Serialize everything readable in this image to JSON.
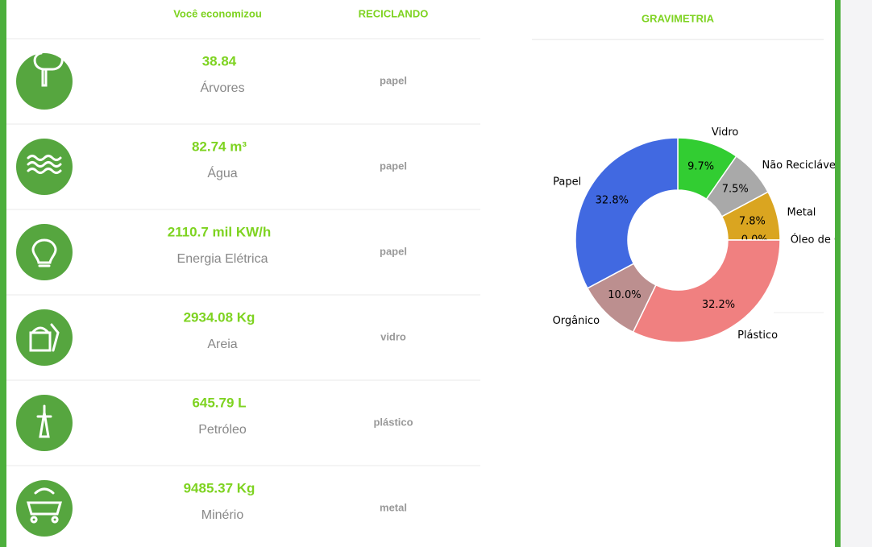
{
  "table": {
    "headers": [
      "Você economizou",
      "RECICLANDO"
    ],
    "rows": [
      {
        "value": "38.84",
        "label": "Árvores",
        "material": "papel"
      },
      {
        "value": "82.74 m³",
        "label": "Água",
        "material": "papel"
      },
      {
        "value": "2110.7 mil KW/h",
        "label": "Energia Elétrica",
        "material": "papel"
      },
      {
        "value": "2934.08 Kg",
        "label": "Areia",
        "material": "vidro"
      },
      {
        "value": "645.79 L",
        "label": "Petróleo",
        "material": "plástico"
      },
      {
        "value": "9485.37 Kg",
        "label": "Minério",
        "material": "metal"
      }
    ]
  },
  "chart_data": {
    "type": "pie",
    "title": "GRAVIMETRIA",
    "donut": true,
    "categories": [
      "Vidro",
      "Não Reciclável",
      "Metal",
      "Óleo de Cozinha",
      "Plástico",
      "Orgânico",
      "Papel"
    ],
    "values": [
      9.7,
      7.5,
      7.8,
      0.0,
      32.2,
      10.0,
      32.8
    ],
    "value_labels": [
      "9.7%",
      "7.5%",
      "7.8%",
      "0.0%",
      "32.2%",
      "10.0%",
      "32.8%"
    ],
    "colors": [
      "#32cd32",
      "#a9a9a9",
      "#daa520",
      "#8b4513",
      "#f08080",
      "#bc8f8f",
      "#4169e1"
    ]
  }
}
